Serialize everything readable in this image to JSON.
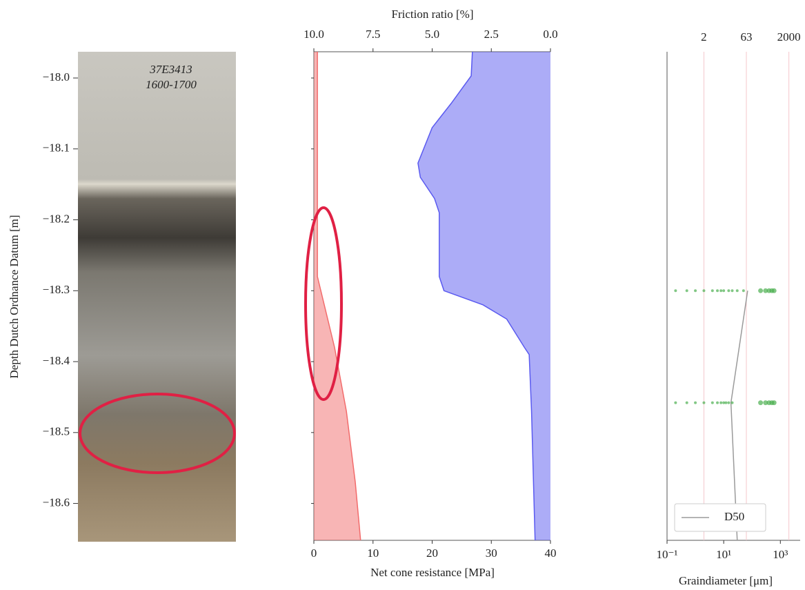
{
  "chart_data": [
    {
      "type": "image",
      "ylabel": "Depth Dutch Ordnance Datum [m]",
      "ylim": [
        -18.652,
        -17.963
      ],
      "yticks": [
        {
          "value": -18.0,
          "label": "−18.0"
        },
        {
          "value": -18.1,
          "label": "−18.1"
        },
        {
          "value": -18.2,
          "label": "−18.2"
        },
        {
          "value": -18.3,
          "label": "−18.3"
        },
        {
          "value": -18.4,
          "label": "−18.4"
        },
        {
          "value": -18.5,
          "label": "−18.5"
        },
        {
          "value": -18.6,
          "label": "−18.6"
        }
      ],
      "annotations": [
        "37E3413",
        "1600-1700"
      ]
    },
    {
      "type": "area",
      "xlabel": "Net cone resistance [MPa]",
      "xlabel_color": "#e8403f",
      "x2label": "Friction ratio [%]",
      "x2label_color": "#3a3ae8",
      "xlim": [
        0,
        40
      ],
      "xticks": [
        0,
        10,
        20,
        30,
        40
      ],
      "x2lim": [
        10,
        0
      ],
      "x2ticks": [
        {
          "value": 10,
          "label": "10.0"
        },
        {
          "value": 7.5,
          "label": "7.5"
        },
        {
          "value": 5,
          "label": "5.0"
        },
        {
          "value": 2.5,
          "label": "2.5"
        },
        {
          "value": 0,
          "label": "0.0"
        }
      ],
      "ylim": [
        -18.652,
        -17.963
      ],
      "series": [
        {
          "color": "#f26b6b",
          "depth": [
            -17.963,
            -18.28,
            -18.38,
            -18.47,
            -18.57,
            -18.652
          ],
          "values": [
            0.6,
            0.6,
            3.5,
            5.5,
            7,
            7.9
          ]
        },
        {
          "color": "#5a5af0",
          "axis": "x2",
          "depth": [
            -17.963,
            -17.997,
            -18.036,
            -18.07,
            -18.12,
            -18.14,
            -18.17,
            -18.19,
            -18.28,
            -18.3,
            -18.32,
            -18.34,
            -18.38,
            -18.39,
            -18.47,
            -18.652
          ],
          "values": [
            3.3,
            3.35,
            4.2,
            5.0,
            5.6,
            5.5,
            4.9,
            4.7,
            4.7,
            4.5,
            2.85,
            1.85,
            1.1,
            0.9,
            0.8,
            0.65
          ]
        }
      ]
    },
    {
      "type": "scatter-line",
      "xlabel": "Graindiameter [μm]",
      "xscale": "log",
      "xlim": [
        0.1,
        5000
      ],
      "xticks": [
        {
          "value": 0.1,
          "label": "10⁻¹"
        },
        {
          "value": 10,
          "label": "10¹"
        },
        {
          "value": 1000,
          "label": "10³"
        }
      ],
      "x2ticks": [
        2,
        63,
        2000
      ],
      "ylim": [
        -18.652,
        -17.963
      ],
      "legend": "lower right",
      "series": [
        {
          "name": "D50",
          "type": "line",
          "color": "#9a9a9a",
          "x": [
            70,
            18,
            30
          ],
          "y": [
            -18.3,
            -18.458,
            -18.652
          ]
        },
        {
          "type": "scatter",
          "color": "#4caf50",
          "x": [
            0.2,
            0.5,
            1,
            2,
            4,
            6,
            8,
            10,
            15,
            20,
            30,
            50,
            200,
            300,
            400,
            500,
            600,
            0.2,
            0.5,
            1,
            2,
            4,
            6,
            8,
            10,
            12,
            15,
            20,
            200,
            300,
            400,
            500,
            600
          ],
          "y": [
            -18.3,
            -18.3,
            -18.3,
            -18.3,
            -18.3,
            -18.3,
            -18.3,
            -18.3,
            -18.3,
            -18.3,
            -18.3,
            -18.3,
            -18.3,
            -18.3,
            -18.3,
            -18.3,
            -18.3,
            -18.458,
            -18.458,
            -18.458,
            -18.458,
            -18.458,
            -18.458,
            -18.458,
            -18.458,
            -18.458,
            -18.458,
            -18.458,
            -18.458,
            -18.458,
            -18.458,
            -18.458,
            -18.458
          ]
        }
      ]
    }
  ]
}
